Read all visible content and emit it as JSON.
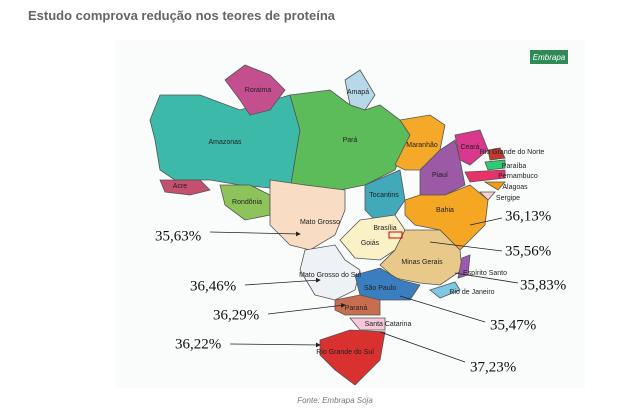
{
  "title": "Estudo comprova redução nos teores de proteína",
  "logo": "Embrapa",
  "source": "Fonte: Embrapa Soja",
  "states": [
    "Roraima",
    "Amapá",
    "Amazonas",
    "Pará",
    "Maranhão",
    "Ceará",
    "Rio Grande do Norte",
    "Paraíba",
    "Pernambuco",
    "Alagoas",
    "Sergipe",
    "Piauí",
    "Acre",
    "Rondônia",
    "Tocantins",
    "Bahia",
    "Mato Grosso",
    "Brasília",
    "Goiás",
    "Minas Gerais",
    "Espírito Santo",
    "Mato Grosso do Sul",
    "São Paulo",
    "Rio de Janeiro",
    "Paraná",
    "Santa Catarina",
    "Rio Grande do Sul"
  ],
  "annotations": [
    "35,63%",
    "36,13%",
    "35,56%",
    "35,83%",
    "36,46%",
    "36,29%",
    "35,47%",
    "36,22%",
    "37,23%"
  ]
}
